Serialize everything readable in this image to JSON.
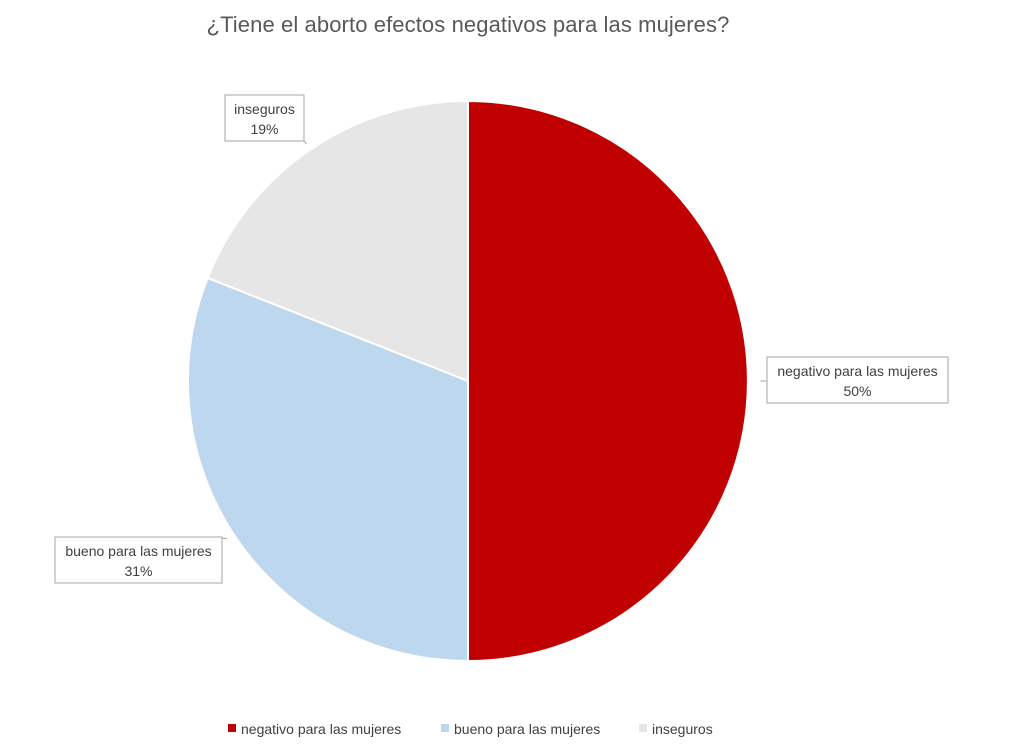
{
  "chart_data": {
    "type": "pie",
    "title": "¿Tiene el aborto efectos negativos para las mujeres?",
    "categories": [
      "negativo para las mujeres",
      "bueno para las mujeres",
      "inseguros"
    ],
    "values": [
      50,
      31,
      19
    ],
    "value_labels": [
      "50%",
      "31%",
      "19%"
    ],
    "colors": [
      "#c00000",
      "#bdd7ee",
      "#e7e6e6"
    ],
    "start_angle_deg": 0,
    "direction": "clockwise",
    "legend_position": "bottom",
    "data_label_style": "callout"
  }
}
